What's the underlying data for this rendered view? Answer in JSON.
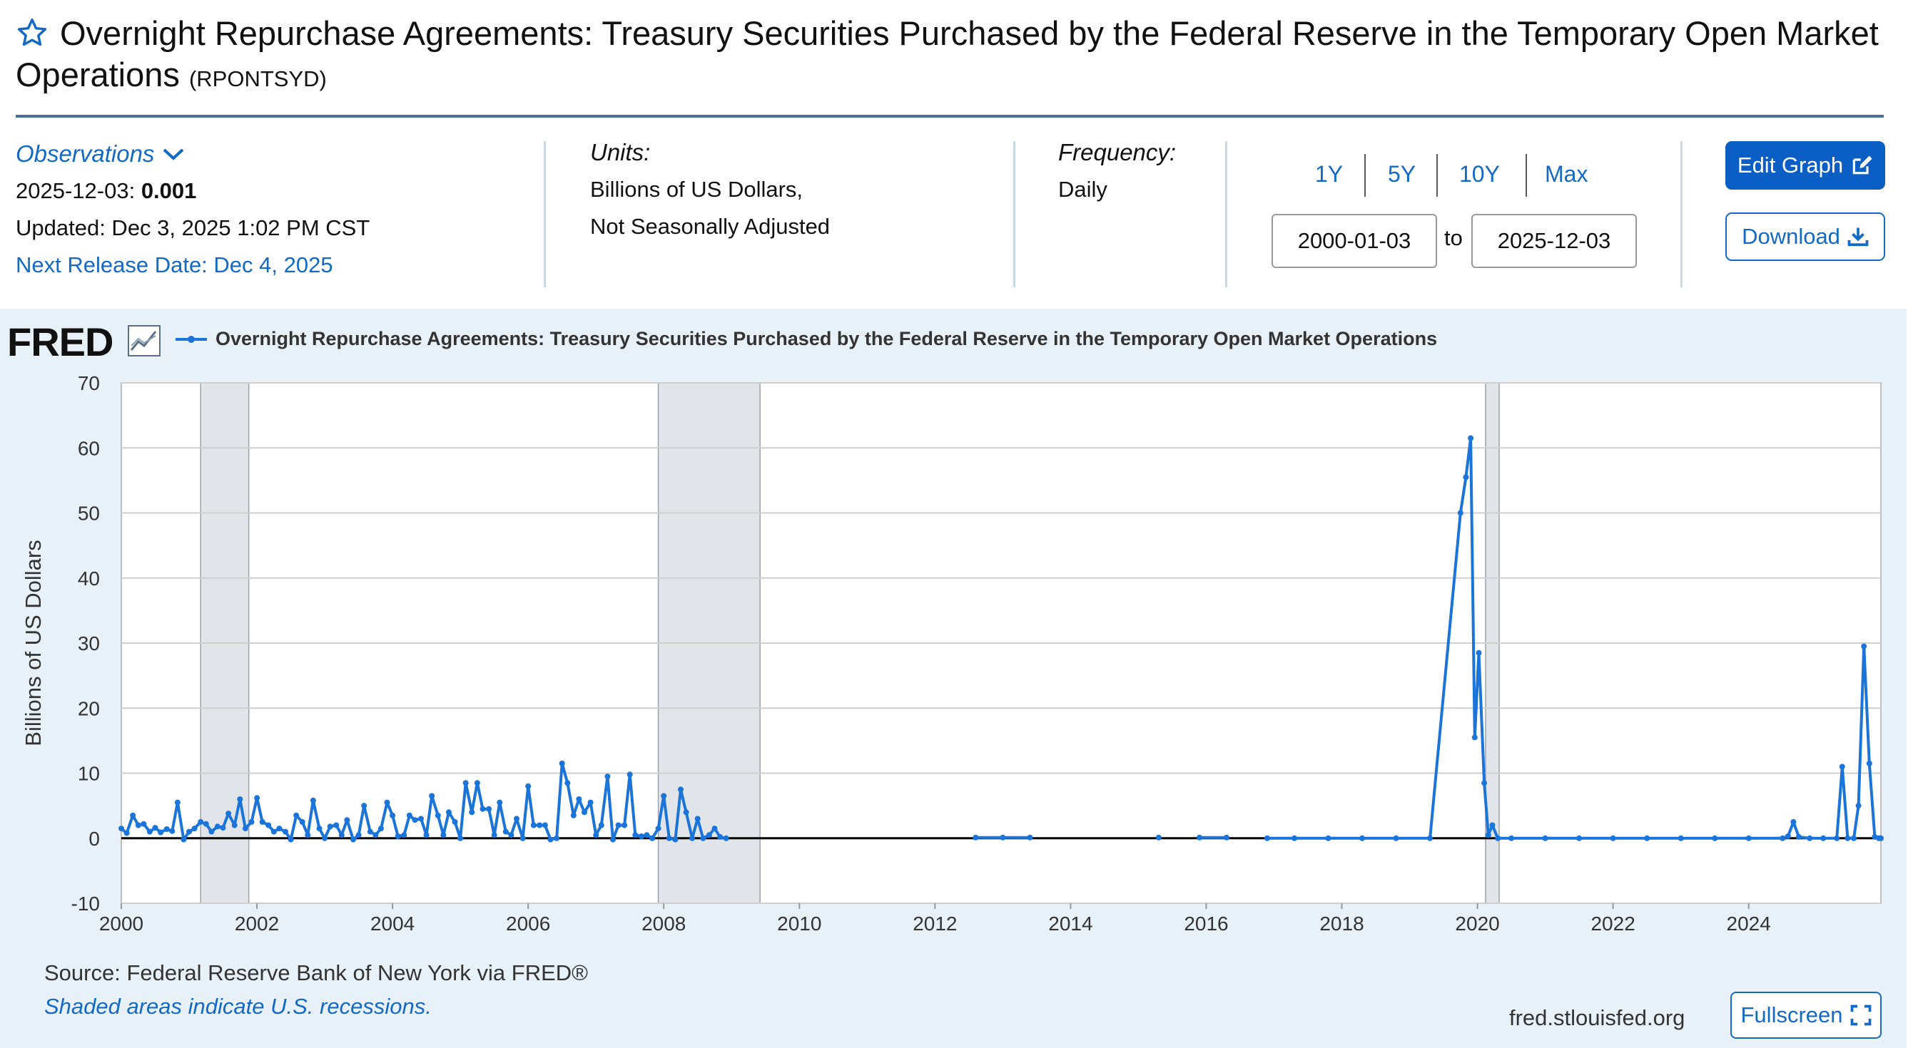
{
  "header": {
    "title": "Overnight Repurchase Agreements: Treasury Securities Purchased by the Federal Reserve in the Temporary Open Market Operations",
    "series_id": "(RPONTSYD)"
  },
  "observations": {
    "label": "Observations",
    "date": "2025-12-03:",
    "value": "0.001",
    "updated": "Updated: Dec 3, 2025 1:02 PM CST",
    "next_release": "Next Release Date: Dec 4, 2025"
  },
  "units": {
    "label": "Units:",
    "line1": "Billions of US Dollars,",
    "line2": "Not Seasonally Adjusted"
  },
  "frequency": {
    "label": "Frequency:",
    "value": "Daily"
  },
  "range": {
    "buttons": [
      "1Y",
      "5Y",
      "10Y",
      "Max"
    ],
    "start": "2000-01-03",
    "to": "to",
    "end": "2025-12-03"
  },
  "actions": {
    "edit": "Edit Graph",
    "download": "Download",
    "fullscreen": "Fullscreen"
  },
  "chart_panel": {
    "logo": "FRED",
    "legend": "Overnight Repurchase Agreements: Treasury Securities Purchased by the Federal Reserve in the Temporary Open Market Operations",
    "source": "Source: Federal Reserve Bank of New York via FRED®",
    "shaded_note": "Shaded areas indicate U.S. recessions.",
    "site": "fred.stlouisfed.org"
  },
  "colors": {
    "series": "#1a74d9",
    "accent": "#0b5fc4",
    "panel_bg": "#e8f0f8",
    "recession": "#e1e5ea"
  },
  "chart_data": {
    "type": "line",
    "title": "",
    "xlabel": "",
    "ylabel": "Billions of US Dollars",
    "xlim": [
      2000.0,
      2025.95
    ],
    "ylim": [
      -10,
      70
    ],
    "yticks": [
      -10,
      0,
      10,
      20,
      30,
      40,
      50,
      60,
      70
    ],
    "xticks": [
      2000,
      2002,
      2004,
      2006,
      2008,
      2010,
      2012,
      2014,
      2016,
      2018,
      2020,
      2022,
      2024
    ],
    "grid": true,
    "legend_position": "top-left",
    "recessions": [
      [
        2001.17,
        2001.88
      ],
      [
        2007.92,
        2009.42
      ],
      [
        2020.12,
        2020.32
      ]
    ],
    "series": [
      {
        "name": "Overnight Repurchase Agreements: Treasury Securities Purchased by the Federal Reserve in the Temporary Open Market Operations",
        "points": [
          [
            2000.0,
            1.5
          ],
          [
            2000.08,
            0.8
          ],
          [
            2000.17,
            3.5
          ],
          [
            2000.25,
            2.0
          ],
          [
            2000.33,
            2.2
          ],
          [
            2000.42,
            1.0
          ],
          [
            2000.5,
            1.6
          ],
          [
            2000.58,
            0.9
          ],
          [
            2000.67,
            1.4
          ],
          [
            2000.75,
            1.1
          ],
          [
            2000.83,
            5.5
          ],
          [
            2000.92,
            -0.2
          ],
          [
            2001.0,
            1.0
          ],
          [
            2001.08,
            1.5
          ],
          [
            2001.17,
            2.5
          ],
          [
            2001.25,
            2.2
          ],
          [
            2001.33,
            1.0
          ],
          [
            2001.42,
            1.8
          ],
          [
            2001.5,
            1.6
          ],
          [
            2001.58,
            3.8
          ],
          [
            2001.67,
            2.0
          ],
          [
            2001.75,
            6.0
          ],
          [
            2001.83,
            1.5
          ],
          [
            2001.92,
            2.5
          ],
          [
            2002.0,
            6.2
          ],
          [
            2002.08,
            2.5
          ],
          [
            2002.17,
            2.0
          ],
          [
            2002.25,
            1.0
          ],
          [
            2002.33,
            1.5
          ],
          [
            2002.42,
            1.0
          ],
          [
            2002.5,
            -0.2
          ],
          [
            2002.58,
            3.5
          ],
          [
            2002.67,
            2.5
          ],
          [
            2002.75,
            0.5
          ],
          [
            2002.83,
            5.8
          ],
          [
            2002.92,
            1.5
          ],
          [
            2003.0,
            0.0
          ],
          [
            2003.08,
            1.8
          ],
          [
            2003.17,
            2.0
          ],
          [
            2003.25,
            0.5
          ],
          [
            2003.33,
            2.8
          ],
          [
            2003.42,
            -0.2
          ],
          [
            2003.5,
            0.5
          ],
          [
            2003.58,
            5.0
          ],
          [
            2003.67,
            1.0
          ],
          [
            2003.75,
            0.5
          ],
          [
            2003.83,
            1.5
          ],
          [
            2003.92,
            5.5
          ],
          [
            2004.0,
            3.5
          ],
          [
            2004.08,
            0.3
          ],
          [
            2004.17,
            0.5
          ],
          [
            2004.25,
            3.5
          ],
          [
            2004.33,
            2.8
          ],
          [
            2004.42,
            3.0
          ],
          [
            2004.5,
            0.5
          ],
          [
            2004.58,
            6.5
          ],
          [
            2004.67,
            3.5
          ],
          [
            2004.75,
            0.5
          ],
          [
            2004.83,
            4.0
          ],
          [
            2004.92,
            2.5
          ],
          [
            2005.0,
            0.0
          ],
          [
            2005.08,
            8.5
          ],
          [
            2005.17,
            4.0
          ],
          [
            2005.25,
            8.5
          ],
          [
            2005.33,
            4.5
          ],
          [
            2005.42,
            4.5
          ],
          [
            2005.5,
            0.5
          ],
          [
            2005.58,
            5.5
          ],
          [
            2005.67,
            1.0
          ],
          [
            2005.75,
            0.5
          ],
          [
            2005.83,
            3.0
          ],
          [
            2005.92,
            0.0
          ],
          [
            2006.0,
            8.0
          ],
          [
            2006.08,
            2.0
          ],
          [
            2006.17,
            2.0
          ],
          [
            2006.25,
            2.0
          ],
          [
            2006.33,
            -0.2
          ],
          [
            2006.42,
            0.0
          ],
          [
            2006.5,
            11.5
          ],
          [
            2006.58,
            8.5
          ],
          [
            2006.67,
            3.5
          ],
          [
            2006.75,
            6.0
          ],
          [
            2006.83,
            4.0
          ],
          [
            2006.92,
            5.5
          ],
          [
            2007.0,
            0.5
          ],
          [
            2007.08,
            2.0
          ],
          [
            2007.17,
            9.5
          ],
          [
            2007.25,
            -0.2
          ],
          [
            2007.33,
            2.0
          ],
          [
            2007.42,
            2.0
          ],
          [
            2007.5,
            9.8
          ],
          [
            2007.58,
            0.5
          ],
          [
            2007.67,
            0.3
          ],
          [
            2007.75,
            0.5
          ],
          [
            2007.83,
            0.0
          ],
          [
            2007.92,
            1.5
          ],
          [
            2008.0,
            6.5
          ],
          [
            2008.08,
            0.0
          ],
          [
            2008.17,
            -0.2
          ],
          [
            2008.25,
            7.5
          ],
          [
            2008.33,
            4.0
          ],
          [
            2008.42,
            0.0
          ],
          [
            2008.5,
            3.0
          ],
          [
            2008.58,
            0.0
          ],
          [
            2008.67,
            0.5
          ],
          [
            2008.75,
            1.5
          ],
          [
            2008.83,
            0.2
          ],
          [
            2008.92,
            0.0
          ],
          [
            2012.6,
            0.1
          ],
          [
            2013.0,
            0.1
          ],
          [
            2013.4,
            0.1
          ],
          [
            2015.3,
            0.1
          ],
          [
            2015.9,
            0.1
          ],
          [
            2016.3,
            0.1
          ],
          [
            2016.9,
            0.0
          ],
          [
            2017.3,
            0.0
          ],
          [
            2017.8,
            0.0
          ],
          [
            2018.3,
            0.0
          ],
          [
            2018.8,
            0.0
          ],
          [
            2019.3,
            0.0
          ],
          [
            2019.75,
            50.0
          ],
          [
            2019.83,
            55.5
          ],
          [
            2019.9,
            61.5
          ],
          [
            2019.96,
            15.5
          ],
          [
            2020.02,
            28.5
          ],
          [
            2020.1,
            8.5
          ],
          [
            2020.16,
            0.5
          ],
          [
            2020.22,
            2.0
          ],
          [
            2020.3,
            0.0
          ],
          [
            2020.5,
            0.0
          ],
          [
            2021.0,
            0.0
          ],
          [
            2021.5,
            0.0
          ],
          [
            2022.0,
            0.0
          ],
          [
            2022.5,
            0.0
          ],
          [
            2023.0,
            0.0
          ],
          [
            2023.5,
            0.0
          ],
          [
            2024.0,
            0.0
          ],
          [
            2024.5,
            0.0
          ],
          [
            2024.58,
            0.3
          ],
          [
            2024.66,
            2.5
          ],
          [
            2024.74,
            0.2
          ],
          [
            2024.9,
            0.0
          ],
          [
            2025.1,
            0.0
          ],
          [
            2025.3,
            0.0
          ],
          [
            2025.38,
            11.0
          ],
          [
            2025.46,
            0.0
          ],
          [
            2025.55,
            0.0
          ],
          [
            2025.62,
            5.0
          ],
          [
            2025.7,
            29.5
          ],
          [
            2025.78,
            11.5
          ],
          [
            2025.86,
            0.2
          ],
          [
            2025.92,
            0.0
          ],
          [
            2025.95,
            0.0
          ]
        ]
      }
    ]
  }
}
